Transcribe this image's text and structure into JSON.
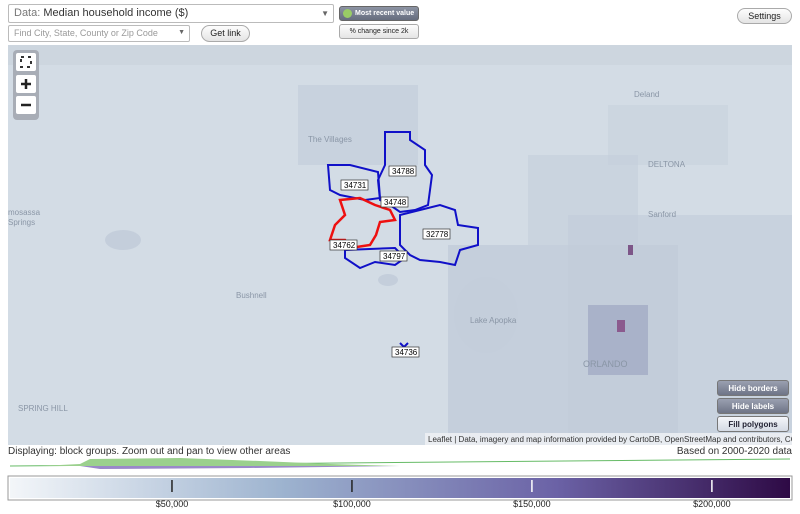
{
  "controls": {
    "data_label": "Data:",
    "data_value": "Median household income ($)",
    "most_recent": "Most recent value",
    "pct_change": "% change since 2k",
    "search_placeholder": "Find City, State, County or Zip Code",
    "get_link": "Get link",
    "settings": "Settings",
    "hide_borders": "Hide borders",
    "hide_labels": "Hide labels",
    "fill_polygons": "Fill polygons"
  },
  "map": {
    "places": {
      "villages": "The Villages",
      "deland": "Deland",
      "deltona": "DELTONA",
      "sanford": "Sanford",
      "homosassa": "mosassa",
      "springs": "Springs",
      "bushnell": "Bushnell",
      "spring_hill": "SPRING HILL",
      "lake_apopka": "Lake Apopka",
      "orlando": "ORLANDO"
    },
    "zips": [
      "34788",
      "34731",
      "34748",
      "32778",
      "34762",
      "34797",
      "34736"
    ],
    "attribution": "Leaflet | Data, imagery and map information provided by CartoDB, OpenStreetMap and contributors, CC-BY-SA"
  },
  "status": {
    "displaying": "Displaying: block groups. Zoom out and pan to view other areas",
    "based_on": "Based on 2000-2020 data"
  },
  "legend": {
    "range": [
      5000,
      221700
    ],
    "ticks": [
      {
        "value": 50000,
        "label": "$50,000"
      },
      {
        "value": 100000,
        "label": "$100,000"
      },
      {
        "value": 150000,
        "label": "$150,000"
      },
      {
        "value": 200000,
        "label": "$200,000"
      }
    ]
  }
}
